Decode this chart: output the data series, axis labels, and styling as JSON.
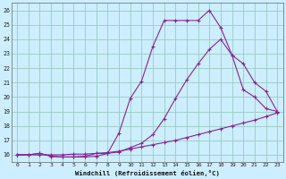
{
  "xlabel": "Windchill (Refroidissement éolien,°C)",
  "background_color": "#cceeff",
  "grid_color": "#99ccbb",
  "line_color": "#882299",
  "xlim": [
    -0.5,
    23.5
  ],
  "ylim": [
    15.5,
    26.5
  ],
  "xticks": [
    0,
    1,
    2,
    3,
    4,
    5,
    6,
    7,
    8,
    9,
    10,
    11,
    12,
    13,
    14,
    15,
    16,
    17,
    18,
    19,
    20,
    21,
    22,
    23
  ],
  "yticks": [
    16,
    17,
    18,
    19,
    20,
    21,
    22,
    23,
    24,
    25,
    26
  ],
  "line1_x": [
    0,
    1,
    2,
    3,
    4,
    5,
    6,
    7,
    8,
    9,
    10,
    11,
    12,
    13,
    14,
    15,
    16,
    17,
    18,
    19,
    20,
    21,
    22,
    23
  ],
  "line1_y": [
    16.0,
    16.0,
    16.1,
    15.9,
    15.85,
    15.85,
    15.85,
    15.9,
    16.1,
    17.5,
    19.9,
    21.1,
    23.5,
    25.3,
    25.3,
    25.3,
    25.3,
    26.0,
    24.8,
    22.9,
    20.5,
    20.0,
    19.2,
    19.0
  ],
  "line2_x": [
    0,
    1,
    2,
    3,
    4,
    5,
    6,
    7,
    8,
    9,
    10,
    11,
    12,
    13,
    14,
    15,
    16,
    17,
    18,
    19,
    20,
    21,
    22,
    23
  ],
  "line2_y": [
    16.0,
    16.0,
    16.1,
    15.9,
    15.85,
    15.85,
    15.9,
    16.1,
    16.1,
    16.2,
    16.5,
    16.8,
    17.4,
    18.5,
    19.9,
    21.2,
    22.3,
    23.3,
    24.0,
    22.9,
    22.3,
    21.0,
    20.4,
    19.0
  ],
  "line3_x": [
    0,
    1,
    2,
    3,
    4,
    5,
    6,
    7,
    8,
    9,
    10,
    11,
    12,
    13,
    14,
    15,
    16,
    17,
    18,
    19,
    20,
    21,
    22,
    23
  ],
  "line3_y": [
    16.0,
    16.0,
    16.0,
    16.0,
    16.0,
    16.05,
    16.05,
    16.1,
    16.15,
    16.25,
    16.4,
    16.55,
    16.7,
    16.85,
    17.0,
    17.2,
    17.4,
    17.6,
    17.8,
    18.0,
    18.2,
    18.4,
    18.65,
    18.9
  ]
}
